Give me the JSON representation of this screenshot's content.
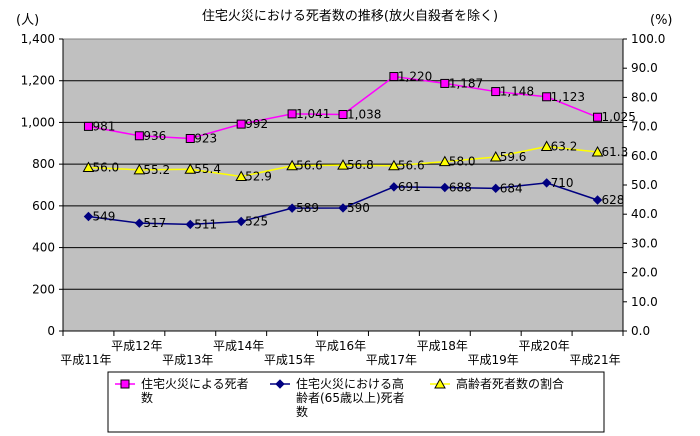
{
  "chart_data": {
    "type": "line",
    "title": "住宅火災における死者数の推移(放火自殺者を除く)",
    "y_left_unit": "(人)",
    "y_right_unit": "(%)",
    "categories": [
      "平成11年",
      "平成12年",
      "平成13年",
      "平成14年",
      "平成15年",
      "平成16年",
      "平成17年",
      "平成18年",
      "平成19年",
      "平成20年",
      "平成21年"
    ],
    "y_left_range": [
      0,
      1400
    ],
    "y_left_ticks": [
      "0",
      "200",
      "400",
      "600",
      "800",
      "1,000",
      "1,200",
      "1,400"
    ],
    "y_right_range": [
      0,
      100
    ],
    "y_right_ticks": [
      "0.0",
      "10.0",
      "20.0",
      "30.0",
      "40.0",
      "50.0",
      "60.0",
      "70.0",
      "80.0",
      "90.0",
      "100.0"
    ],
    "grid": true,
    "legend_position": "bottom",
    "series": [
      {
        "name": "住宅火災による死者数",
        "axis": "left",
        "color": "#ff00ff",
        "marker": "square",
        "values": [
          981,
          936,
          923,
          992,
          1041,
          1038,
          1220,
          1187,
          1148,
          1123,
          1025
        ],
        "labels": [
          "981",
          "936",
          "923",
          "992",
          "1,041",
          "1,038",
          "1,220",
          "1,187",
          "1,148",
          "1,123",
          "1,025"
        ]
      },
      {
        "name": "住宅火災における高齢者(65歳以上)死者数",
        "axis": "left",
        "color": "#000080",
        "marker": "diamond",
        "values": [
          549,
          517,
          511,
          525,
          589,
          590,
          691,
          688,
          684,
          710,
          628
        ],
        "labels": [
          "549",
          "517",
          "511",
          "525",
          "589",
          "590",
          "691",
          "688",
          "684",
          "710",
          "628"
        ]
      },
      {
        "name": "高齢者死者数の割合",
        "axis": "right",
        "color": "#ffff00",
        "marker": "triangle",
        "values": [
          56.0,
          55.2,
          55.4,
          52.9,
          56.6,
          56.8,
          56.6,
          58.0,
          59.6,
          63.2,
          61.3
        ],
        "labels": [
          "56.0",
          "55.2",
          "55.4",
          "52.9",
          "56.6",
          "56.8",
          "56.6",
          "58.0",
          "59.6",
          "63.2",
          "61.3"
        ]
      }
    ],
    "legend": [
      {
        "lines": [
          "住宅火災による死者",
          "数"
        ]
      },
      {
        "lines": [
          "住宅火災における高",
          "齢者(65歳以上)死者",
          "数"
        ]
      },
      {
        "lines": [
          "高齢者死者数の割合"
        ]
      }
    ]
  }
}
